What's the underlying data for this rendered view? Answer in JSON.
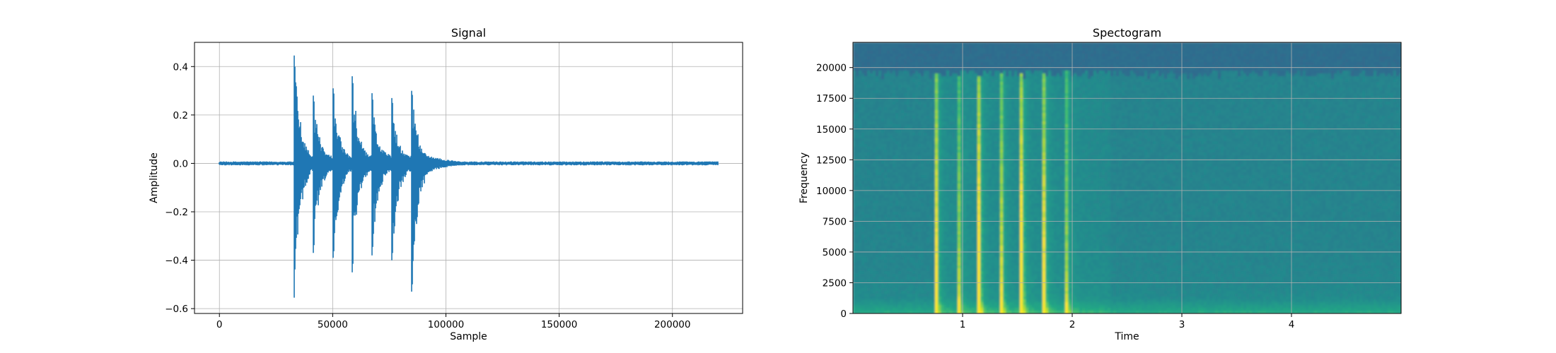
{
  "chart_data": [
    {
      "type": "line",
      "title": "Signal",
      "xlabel": "Sample",
      "ylabel": "Amplitude",
      "xlim": [
        -11000,
        231000
      ],
      "ylim": [
        -0.62,
        0.5
      ],
      "xticks": [
        0,
        50000,
        100000,
        150000,
        200000
      ],
      "xtick_labels": [
        "0",
        "50000",
        "100000",
        "150000",
        "200000"
      ],
      "yticks": [
        -0.6,
        -0.4,
        -0.2,
        0.0,
        0.2,
        0.4
      ],
      "ytick_labels": [
        "−0.6",
        "−0.4",
        "−0.2",
        "0.0",
        "0.2",
        "0.4"
      ],
      "grid": true,
      "line_color": "#1f77b4",
      "series": [
        {
          "x_range": [
            0,
            220000
          ],
          "noise_amplitude": 0.007,
          "transients": [
            {
              "x": 33000,
              "max": 0.45,
              "min": -0.56
            },
            {
              "x": 41500,
              "max": 0.28,
              "min": -0.37
            },
            {
              "x": 50300,
              "max": 0.31,
              "min": -0.39
            },
            {
              "x": 58700,
              "max": 0.36,
              "min": -0.45
            },
            {
              "x": 67400,
              "max": 0.29,
              "min": -0.38
            },
            {
              "x": 76200,
              "max": 0.27,
              "min": -0.4
            },
            {
              "x": 85000,
              "max": 0.3,
              "min": -0.53
            }
          ]
        }
      ]
    },
    {
      "type": "heatmap",
      "title": "Spectogram",
      "xlabel": "Time",
      "ylabel": "Frequency",
      "xlim": [
        0,
        5.0
      ],
      "ylim": [
        0,
        22050
      ],
      "xticks": [
        1,
        2,
        3,
        4
      ],
      "xtick_labels": [
        "1",
        "2",
        "3",
        "4"
      ],
      "yticks": [
        0,
        2500,
        5000,
        7500,
        10000,
        12500,
        15000,
        17500,
        20000
      ],
      "ytick_labels": [
        "0",
        "2500",
        "5000",
        "7500",
        "10000",
        "12500",
        "15000",
        "17500",
        "20000"
      ],
      "grid": true,
      "colormap": "viridis",
      "events_time": [
        0.76,
        0.96,
        1.15,
        1.35,
        1.54,
        1.74,
        1.94
      ],
      "noise_floor_cutoff_hz": 19500
    }
  ]
}
